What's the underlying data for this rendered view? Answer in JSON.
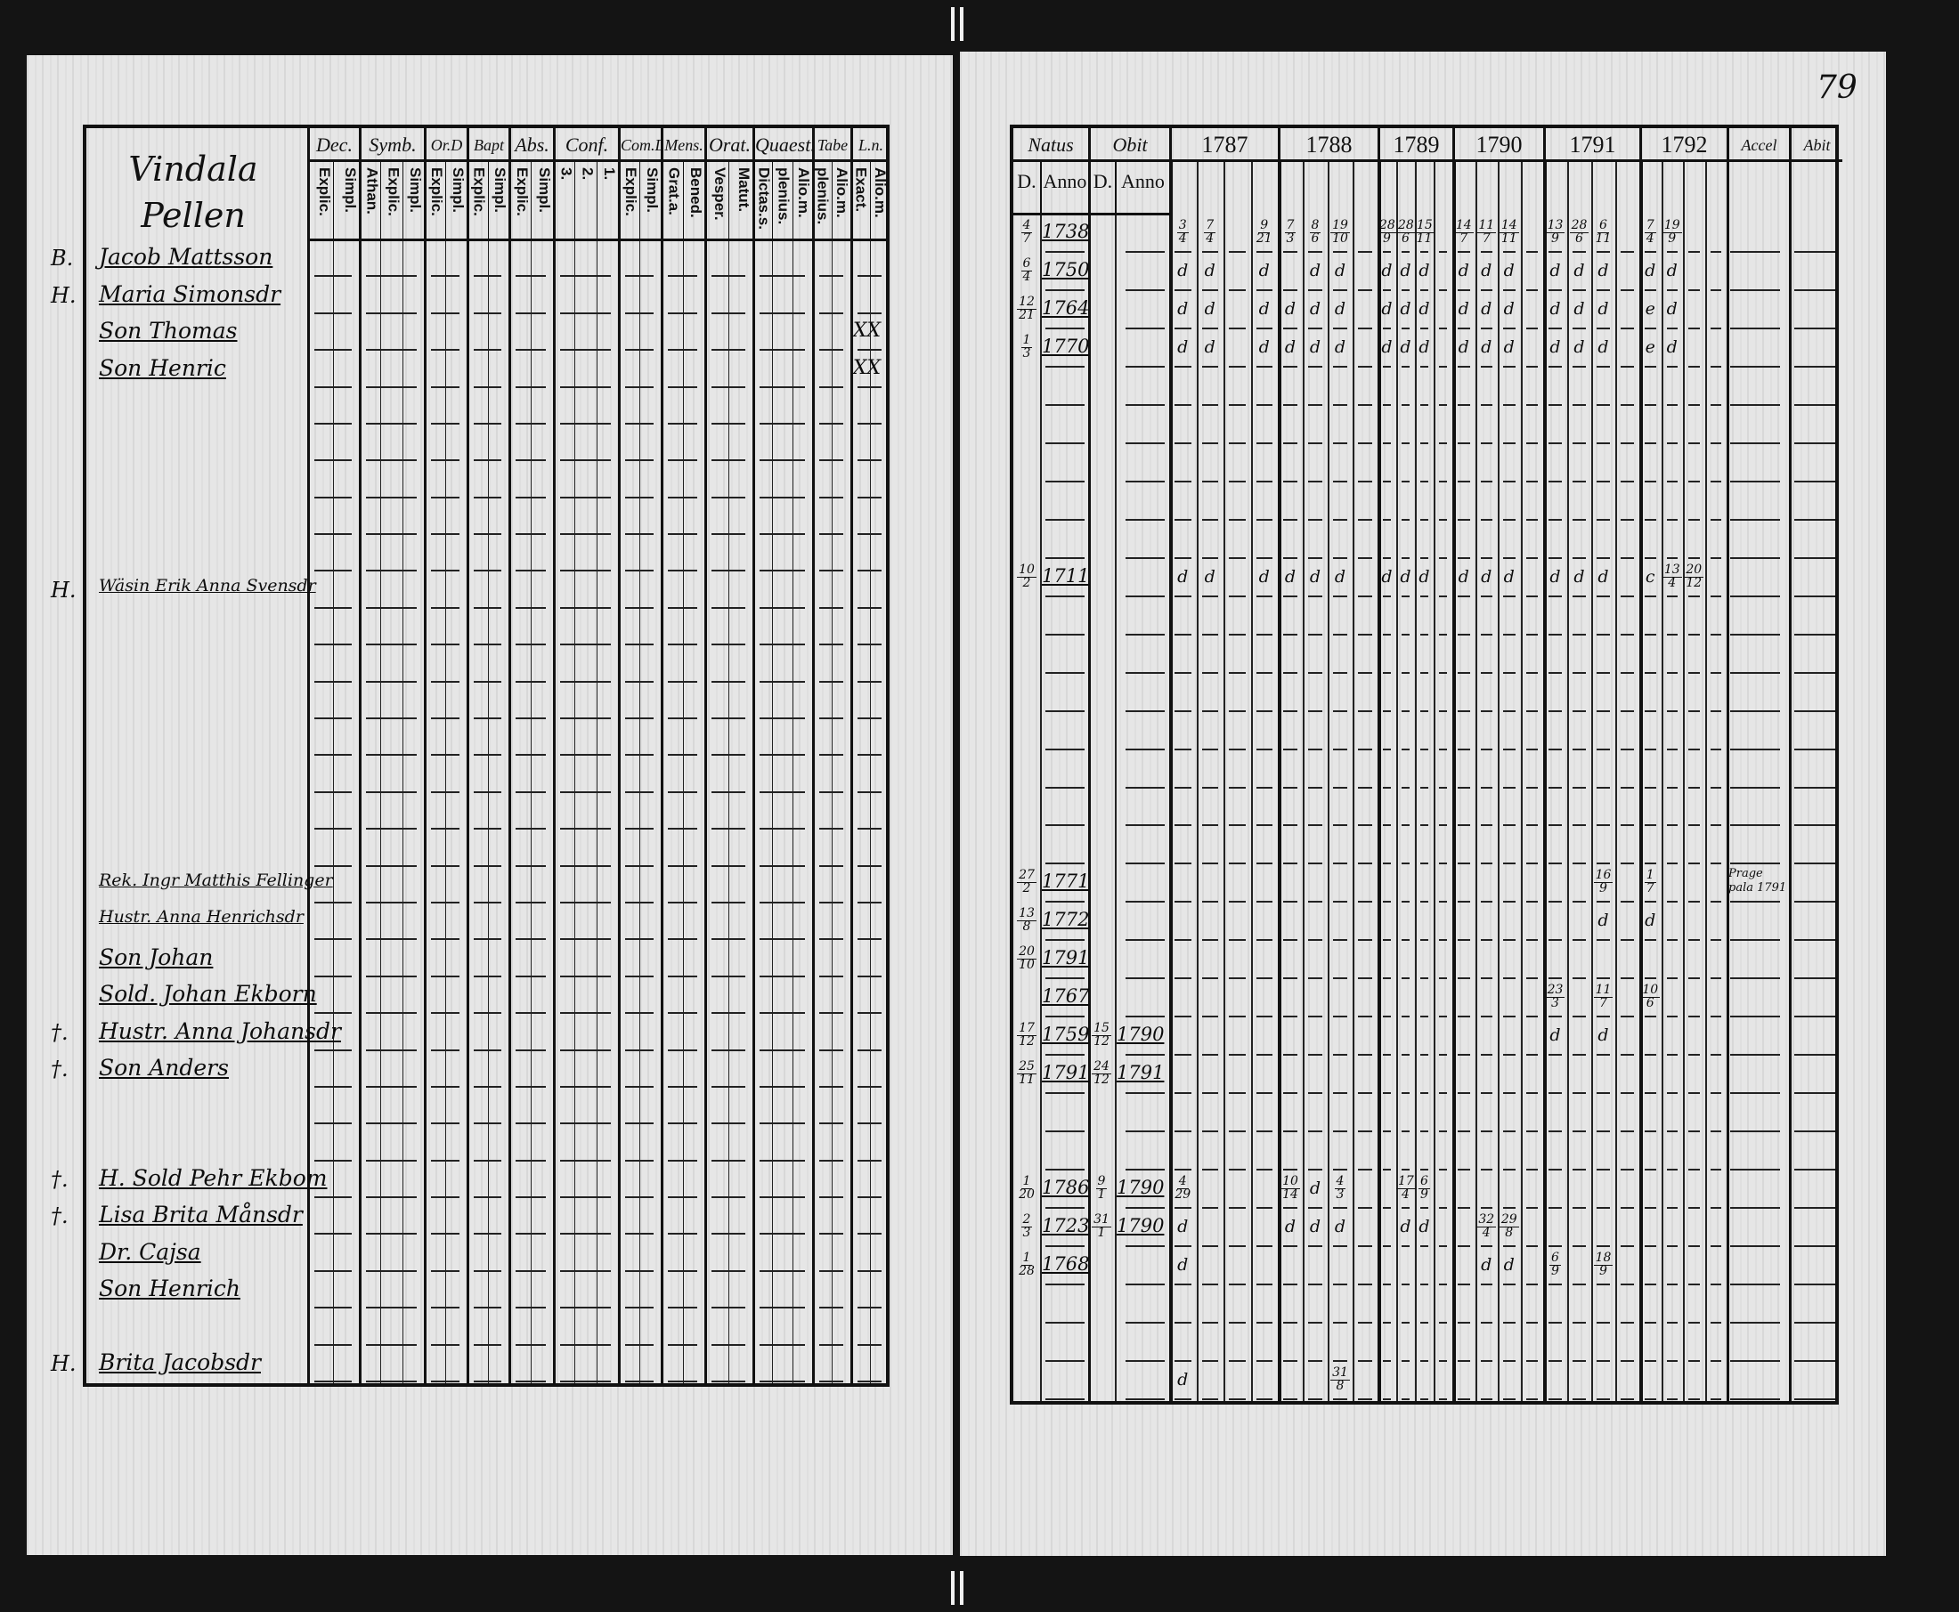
{
  "page_number": "79",
  "left_page": {
    "title": [
      "Vindala",
      "Pellen"
    ],
    "columns": [
      {
        "label": "Dec.",
        "sub": [
          "Explic.",
          "Simpl."
        ]
      },
      {
        "label": "Symb.",
        "sub": [
          "Athan.",
          "Explic.",
          "Simpl."
        ]
      },
      {
        "label": "Or.D",
        "sub": [
          "Explic.",
          "Simpl."
        ]
      },
      {
        "label": "Bapt",
        "sub": [
          "Explic.",
          "Simpl."
        ]
      },
      {
        "label": "Abs.",
        "sub": [
          "Explic.",
          "Simpl."
        ]
      },
      {
        "label": "Conf.",
        "sub": [
          "3.",
          "2.",
          "1."
        ]
      },
      {
        "label": "Com.D",
        "sub": [
          "Explic.",
          "Simpl."
        ]
      },
      {
        "label": "Mens.",
        "sub": [
          "Grat.a.",
          "Bened."
        ]
      },
      {
        "label": "Orat.",
        "sub": [
          "Vesper.",
          "Matut."
        ]
      },
      {
        "label": "Quaest.",
        "sub": [
          "Dictas.s.",
          "plenius.",
          "Alio.m."
        ]
      },
      {
        "label": "Tabe",
        "sub": [
          "plenius.",
          "Alio.m."
        ]
      },
      {
        "label": "L.n.",
        "sub": [
          "Exact.",
          "Alio.m."
        ]
      }
    ],
    "rows": [
      {
        "margin": "B.",
        "name": "Jacob Mattsson",
        "ln": ""
      },
      {
        "margin": "H.",
        "name": "Maria Simonsdr",
        "ln": ""
      },
      {
        "margin": "",
        "name": "Son Thomas",
        "ln": "XX"
      },
      {
        "margin": "",
        "name": "Son Henric",
        "ln": "XX"
      },
      {},
      {},
      {},
      {},
      {},
      {
        "margin": "H.",
        "name": "Wäsin Erik Anna Svensdr",
        "ln": ""
      },
      {},
      {},
      {},
      {},
      {},
      {},
      {},
      {
        "margin": "",
        "name": "Rek. Ingr Matthis Fellinger",
        "ln": ""
      },
      {
        "margin": "",
        "name": "Hustr. Anna Henrichsdr",
        "ln": ""
      },
      {
        "margin": "",
        "name": "Son Johan",
        "ln": ""
      },
      {
        "margin": "",
        "name": "Sold. Johan Ekborn",
        "ln": ""
      },
      {
        "margin": "†.",
        "name": "Hustr. Anna Johansdr",
        "ln": ""
      },
      {
        "margin": "†.",
        "name": "Son Anders",
        "ln": ""
      },
      {},
      {},
      {
        "margin": "†.",
        "name": "H. Sold Pehr Ekbom",
        "ln": ""
      },
      {
        "margin": "†.",
        "name": "Lisa Brita Månsdr",
        "ln": ""
      },
      {
        "margin": "",
        "name": "Dr. Cajsa",
        "ln": ""
      },
      {
        "margin": "",
        "name": "Son Henrich",
        "ln": ""
      },
      {},
      {
        "margin": "H.",
        "name": "Brita Jacobsdr",
        "ln": ""
      }
    ]
  },
  "right_page": {
    "headers": {
      "natus": "Natus",
      "obitus": "Obit",
      "d": "D.",
      "anno": "Anno",
      "years": [
        "1787",
        "1788",
        "1789",
        "1790",
        "1791",
        "1792"
      ],
      "accel": "Accel",
      "abit": "Abit"
    },
    "rows": [
      {
        "nd": "4/7",
        "na": "1738",
        "od": "",
        "oa": "",
        "y": [
          [
            "3/4",
            "7/4",
            "",
            "9/21"
          ],
          [
            "7/3",
            "8/6",
            "19/10",
            ""
          ],
          [
            "28/9",
            "28/6",
            "15/11",
            ""
          ],
          [
            "14/7",
            "11/7",
            "14/11",
            ""
          ],
          [
            "13/9",
            "28/6",
            "6/11",
            ""
          ],
          [
            "7/4",
            "19/9",
            "",
            ""
          ]
        ]
      },
      {
        "nd": "6/4",
        "na": "1750",
        "od": "",
        "oa": "",
        "y": [
          [
            "d",
            "d",
            "",
            "d"
          ],
          [
            "",
            "d",
            "d",
            ""
          ],
          [
            "d",
            "d",
            "d",
            ""
          ],
          [
            "d",
            "d",
            "d",
            ""
          ],
          [
            "d",
            "d",
            "d",
            ""
          ],
          [
            "d",
            "d",
            "",
            ""
          ]
        ]
      },
      {
        "nd": "12/21",
        "na": "1764",
        "od": "",
        "oa": "",
        "y": [
          [
            "d",
            "d",
            "",
            "d"
          ],
          [
            "d",
            "d",
            "d",
            ""
          ],
          [
            "d",
            "d",
            "d",
            ""
          ],
          [
            "d",
            "d",
            "d",
            ""
          ],
          [
            "d",
            "d",
            "d",
            ""
          ],
          [
            "e",
            "d",
            "",
            ""
          ]
        ]
      },
      {
        "nd": "1/3",
        "na": "1770",
        "od": "",
        "oa": "",
        "y": [
          [
            "d",
            "d",
            "",
            "d"
          ],
          [
            "d",
            "d",
            "d",
            ""
          ],
          [
            "d",
            "d",
            "d",
            ""
          ],
          [
            "d",
            "d",
            "d",
            ""
          ],
          [
            "d",
            "d",
            "d",
            ""
          ],
          [
            "e",
            "d",
            "",
            ""
          ]
        ]
      },
      {},
      {},
      {},
      {},
      {},
      {
        "nd": "10/2",
        "na": "1711",
        "od": "",
        "oa": "",
        "y": [
          [
            "d",
            "d",
            "",
            "d"
          ],
          [
            "d",
            "d",
            "d",
            ""
          ],
          [
            "d",
            "d",
            "d",
            ""
          ],
          [
            "d",
            "d",
            "d",
            ""
          ],
          [
            "d",
            "d",
            "d",
            ""
          ],
          [
            "c",
            "13/4",
            "20/12",
            ""
          ]
        ]
      },
      {},
      {},
      {},
      {},
      {},
      {},
      {},
      {
        "nd": "27/2",
        "na": "1771",
        "od": "",
        "oa": "",
        "y": [
          [],
          [],
          [],
          [],
          [
            "",
            "",
            "16/9",
            ""
          ],
          [
            "1/7",
            "",
            "",
            ""
          ]
        ],
        "accel": "Prage pala 1791"
      },
      {
        "nd": "13/8",
        "na": "1772",
        "od": "",
        "oa": "",
        "y": [
          [],
          [],
          [],
          [],
          [
            "",
            "",
            "d",
            ""
          ],
          [
            "d",
            "",
            "",
            ""
          ]
        ]
      },
      {
        "nd": "20/10",
        "na": "1791",
        "od": "",
        "oa": "",
        "y": [
          [],
          [],
          [],
          [],
          [],
          []
        ]
      },
      {
        "nd": "",
        "na": "1767",
        "od": "",
        "oa": "",
        "y": [
          [],
          [],
          [],
          [],
          [
            "23/3",
            "",
            "11/7",
            ""
          ],
          [
            "10/6",
            "",
            "",
            ""
          ]
        ]
      },
      {
        "nd": "17/12",
        "na": "1759",
        "od": "15/12",
        "oa": "1790",
        "y": [
          [],
          [],
          [],
          [],
          [
            "d",
            "",
            "d",
            ""
          ],
          []
        ]
      },
      {
        "nd": "25/11",
        "na": "1791",
        "od": "24/12",
        "oa": "1791",
        "y": [
          [],
          [],
          [],
          [],
          [],
          []
        ]
      },
      {},
      {},
      {
        "nd": "1/20",
        "na": "1786",
        "od": "9/1",
        "oa": "1790",
        "y": [
          [
            "4/29",
            "",
            "",
            ""
          ],
          [
            "10/14",
            "d",
            "4/3",
            ""
          ],
          [
            "",
            "17/4",
            "6/9",
            ""
          ],
          [],
          [],
          []
        ]
      },
      {
        "nd": "2/3",
        "na": "1723",
        "od": "31/1",
        "oa": "1790",
        "y": [
          [
            "d",
            "",
            "",
            ""
          ],
          [
            "d",
            "d",
            "d",
            ""
          ],
          [
            "",
            "d",
            "d",
            ""
          ],
          [
            "",
            "32/4",
            "29/8",
            ""
          ],
          [],
          []
        ]
      },
      {
        "nd": "1/28",
        "na": "1768",
        "od": "",
        "oa": "",
        "y": [
          [
            "d",
            "",
            "",
            ""
          ],
          [],
          [],
          [
            "",
            "d",
            "d",
            ""
          ],
          [
            "6/9",
            "",
            "18/9",
            ""
          ],
          []
        ]
      },
      {},
      {},
      {
        "nd": "",
        "na": "",
        "od": "",
        "oa": "",
        "y": [
          [
            "d",
            "",
            "",
            ""
          ],
          [
            "",
            "",
            "31/8",
            ""
          ],
          [],
          [],
          [],
          []
        ]
      }
    ]
  }
}
